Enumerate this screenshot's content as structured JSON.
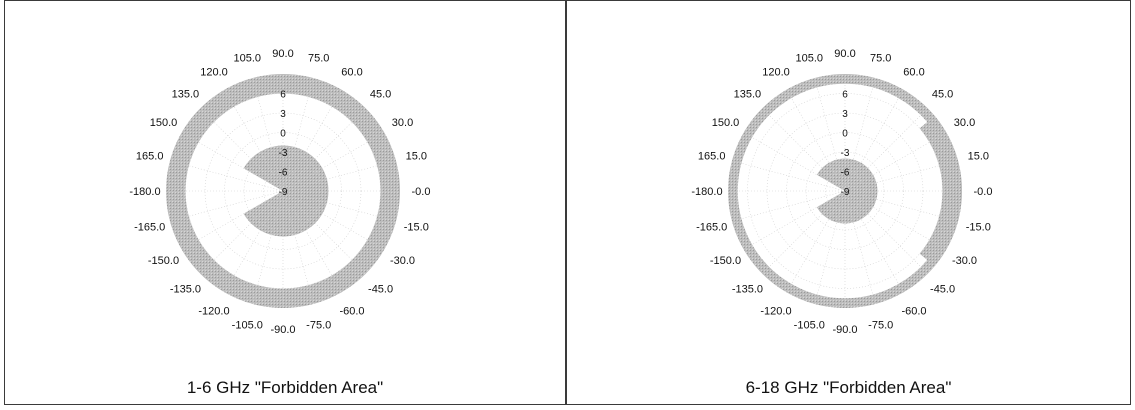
{
  "chart_data": [
    {
      "type": "polar",
      "caption": "1-6 GHz \"Forbidden Area\"",
      "angular_ticks": [
        "105.0",
        "90.0",
        "75.0",
        "120.0",
        "60.0",
        "135.0",
        "45.0",
        "150.0",
        "30.0",
        "165.0",
        "15.0",
        "-180.0",
        "-0.0",
        "-165.0",
        "-15.0",
        "-150.0",
        "-30.0",
        "-135.0",
        "-45.0",
        "-120.0",
        "-60.0",
        "-105.0",
        "-90.0",
        "-75.0"
      ],
      "angular_tick_values": [
        105,
        90,
        75,
        120,
        60,
        135,
        45,
        150,
        30,
        165,
        15,
        180,
        0,
        -165,
        -15,
        -150,
        -30,
        -135,
        -45,
        -120,
        -60,
        -105,
        -90,
        -75
      ],
      "radial_ticks": [
        "6",
        "3",
        "0",
        "-3",
        "-6",
        "-9"
      ],
      "radial_tick_values": [
        6,
        3,
        0,
        -3,
        -6,
        -9
      ],
      "rlim": [
        -9,
        9
      ],
      "grid": true,
      "forbidden_outer_ring": {
        "r_inner": 6,
        "r_outer": 9,
        "theta_start": -180,
        "theta_end": 180
      },
      "forbidden_inner_sector": {
        "r_max": -2,
        "theta_start": -150,
        "theta_end": 150
      },
      "color": "#bdbdbd"
    },
    {
      "type": "polar",
      "caption": "6-18 GHz \"Forbidden Area\"",
      "angular_ticks": [
        "105.0",
        "90.0",
        "75.0",
        "120.0",
        "60.0",
        "135.0",
        "45.0",
        "150.0",
        "30.0",
        "165.0",
        "15.0",
        "-180.0",
        "-0.0",
        "-165.0",
        "-15.0",
        "-150.0",
        "-30.0",
        "-135.0",
        "-45.0",
        "-120.0",
        "-60.0",
        "-105.0",
        "-90.0",
        "-75.0"
      ],
      "angular_tick_values": [
        105,
        90,
        75,
        120,
        60,
        135,
        45,
        150,
        30,
        165,
        15,
        180,
        0,
        -165,
        -15,
        -150,
        -30,
        -135,
        -45,
        -120,
        -60,
        -105,
        -90,
        -75
      ],
      "radial_ticks": [
        "6",
        "3",
        "0",
        "-3",
        "-6",
        "-9"
      ],
      "radial_tick_values": [
        6,
        3,
        0,
        -3,
        -6,
        -9
      ],
      "rlim": [
        -9,
        9
      ],
      "grid": true,
      "forbidden_outer_ring": {
        "r_inner": 7.5,
        "r_outer": 9,
        "theta_start": -180,
        "theta_end": 180
      },
      "forbidden_outer_ring_thick": {
        "r_inner": 6,
        "r_outer": 9,
        "theta_start": -40,
        "theta_end": 40
      },
      "forbidden_inner_sector": {
        "r_max": -4,
        "theta_start": -150,
        "theta_end": 150
      },
      "color": "#bdbdbd"
    }
  ]
}
